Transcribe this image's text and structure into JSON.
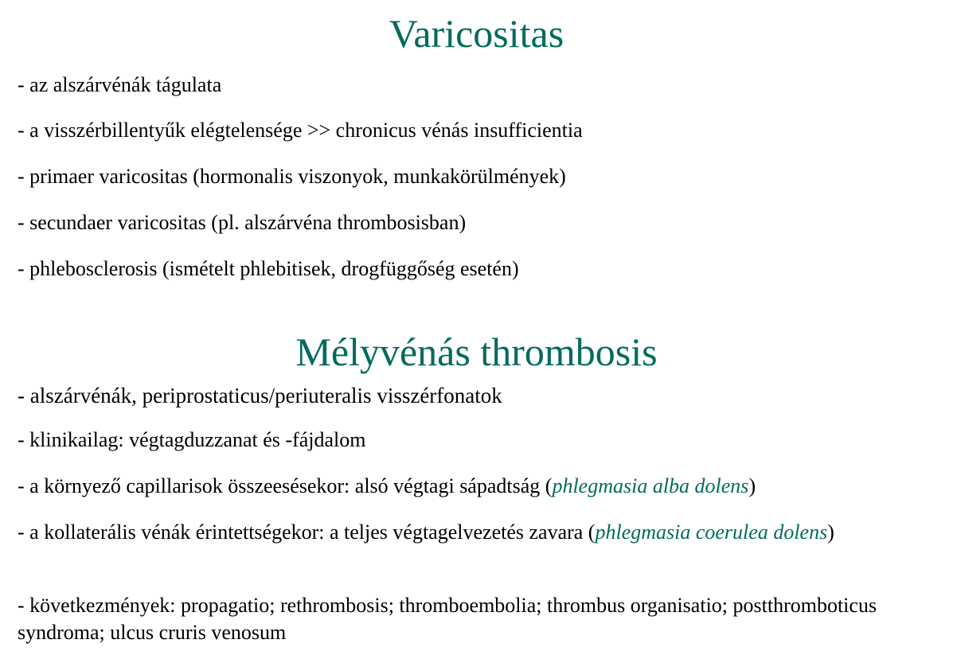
{
  "section1": {
    "title": "Varicositas",
    "items": [
      "- az alszárvénák tágulata",
      "- a visszérbillentyűk elégtelensége >> chronicus vénás insufficientia",
      "- primaer varicositas (hormonalis viszonyok, munkakörülmények)",
      "- secundaer varicositas (pl. alszárvéna thrombosisban)",
      "- phlebosclerosis (ismételt phlebitisek, drogfüggőség esetén)"
    ]
  },
  "section2": {
    "title": "Mélyvénás thrombosis",
    "items": [
      "- alszárvénák, periprostaticus/periuteralis visszérfonatok",
      "- klinikailag: végtagduzzanat és -fájdalom"
    ],
    "item3": {
      "before": "- a környező capillarisok összeesésekor: alsó végtagi sápadtság  (",
      "italic": "phlegmasia alba dolens",
      "after": ")"
    },
    "item4": {
      "before": "- a kollaterális vénák érintettségekor: a teljes végtagelvezetés zavara (",
      "italic": "phlegmasia coerulea dolens",
      "after": ")"
    },
    "item5": "- következmények: propagatio; rethrombosis; thromboembolia; thrombus organisatio; postthromboticus syndroma; ulcus cruris venosum"
  },
  "colors": {
    "heading": "#006b5e",
    "italic_term": "#006b5e",
    "body_text": "#000000",
    "background": "#ffffff"
  }
}
